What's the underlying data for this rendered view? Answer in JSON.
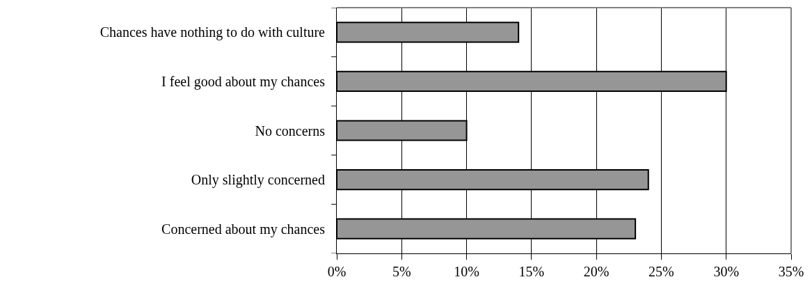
{
  "chart_data": {
    "type": "bar",
    "orientation": "horizontal",
    "categories": [
      "Chances have nothing to do with culture",
      "I feel good about my chances",
      "No concerns",
      "Only slightly concerned",
      "Concerned about my chances"
    ],
    "values": [
      14,
      30,
      10,
      24,
      23
    ],
    "color": "#969696",
    "xlim": [
      0,
      35
    ],
    "xticks": [
      {
        "value": 0,
        "label": "0%"
      },
      {
        "value": 5,
        "label": "5%"
      },
      {
        "value": 10,
        "label": "10%"
      },
      {
        "value": 15,
        "label": "15%"
      },
      {
        "value": 20,
        "label": "20%"
      },
      {
        "value": 25,
        "label": "25%"
      },
      {
        "value": 30,
        "label": "30%"
      },
      {
        "value": 35,
        "label": "35%"
      }
    ],
    "grid": "x",
    "legend": false
  }
}
